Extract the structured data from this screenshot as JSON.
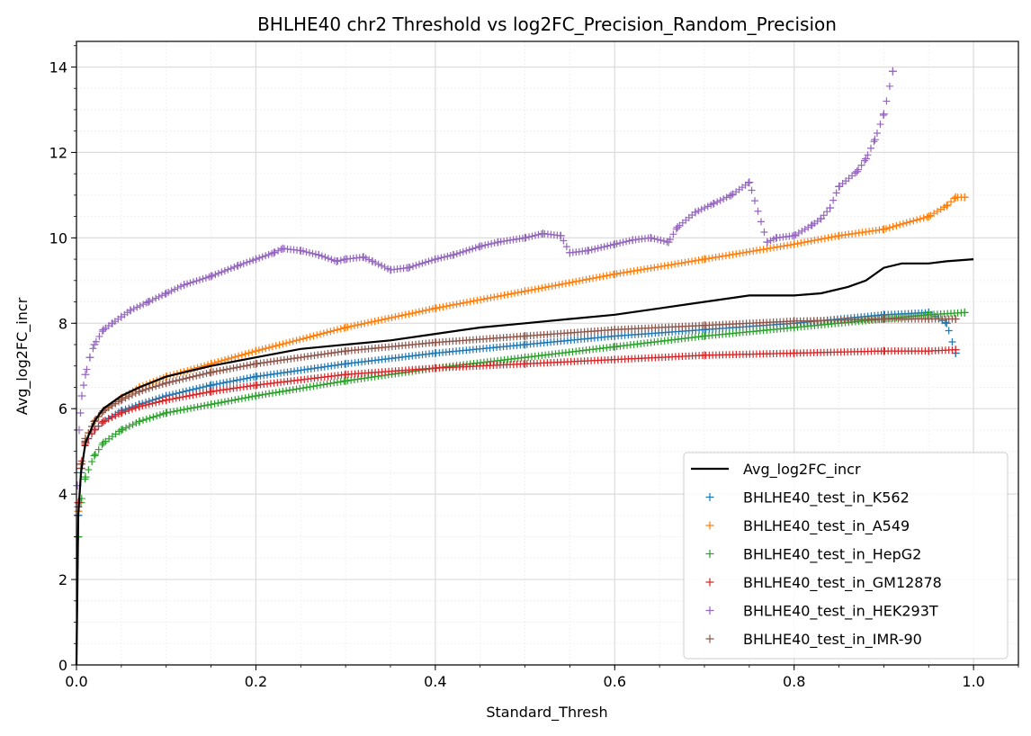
{
  "chart_data": {
    "type": "line",
    "title": "BHLHE40 chr2 Threshold vs log2FC_Precision_Random_Precision",
    "xlabel": "Standard_Thresh",
    "ylabel": "Avg_log2FC_incr",
    "xlim": [
      0.0,
      1.05
    ],
    "ylim": [
      0,
      14.6
    ],
    "xticks": [
      0.0,
      0.2,
      0.4,
      0.6,
      0.8,
      1.0
    ],
    "xtick_labels": [
      "0.0",
      "0.2",
      "0.4",
      "0.6",
      "0.8",
      "1.0"
    ],
    "yticks": [
      0,
      2,
      4,
      6,
      8,
      10,
      12,
      14
    ],
    "ytick_labels": [
      "0",
      "2",
      "4",
      "6",
      "8",
      "10",
      "12",
      "14"
    ],
    "grid": true,
    "minor_grid": true,
    "legend_position": "lower-right",
    "series": [
      {
        "name": "Avg_log2FC_incr",
        "style": "line",
        "color": "#000000",
        "x": [
          0.0,
          0.002,
          0.005,
          0.01,
          0.02,
          0.03,
          0.05,
          0.07,
          0.1,
          0.15,
          0.2,
          0.25,
          0.3,
          0.35,
          0.4,
          0.45,
          0.5,
          0.55,
          0.6,
          0.65,
          0.7,
          0.75,
          0.8,
          0.83,
          0.86,
          0.88,
          0.9,
          0.92,
          0.95,
          0.97,
          1.0
        ],
        "y": [
          0.0,
          3.5,
          4.5,
          5.2,
          5.7,
          6.0,
          6.3,
          6.5,
          6.75,
          7.0,
          7.2,
          7.4,
          7.5,
          7.6,
          7.75,
          7.9,
          8.0,
          8.1,
          8.2,
          8.35,
          8.5,
          8.65,
          8.65,
          8.7,
          8.85,
          9.0,
          9.3,
          9.4,
          9.4,
          9.45,
          9.5
        ]
      },
      {
        "name": "BHLHE40_test_in_K562",
        "style": "marker",
        "color": "#1f77b4",
        "x": [
          0.002,
          0.005,
          0.01,
          0.02,
          0.03,
          0.05,
          0.07,
          0.1,
          0.15,
          0.2,
          0.3,
          0.4,
          0.5,
          0.6,
          0.7,
          0.8,
          0.9,
          0.95,
          0.97,
          0.98
        ],
        "y": [
          3.5,
          4.5,
          5.2,
          5.5,
          5.7,
          5.95,
          6.1,
          6.3,
          6.55,
          6.75,
          7.05,
          7.3,
          7.5,
          7.7,
          7.85,
          8.0,
          8.2,
          8.25,
          8.0,
          7.3
        ]
      },
      {
        "name": "BHLHE40_test_in_A549",
        "style": "marker",
        "color": "#ff7f0e",
        "x": [
          0.002,
          0.005,
          0.01,
          0.02,
          0.03,
          0.05,
          0.07,
          0.1,
          0.15,
          0.2,
          0.3,
          0.4,
          0.5,
          0.6,
          0.7,
          0.8,
          0.85,
          0.9,
          0.95,
          0.97,
          0.98,
          0.99
        ],
        "y": [
          3.6,
          4.6,
          5.3,
          5.7,
          5.95,
          6.25,
          6.5,
          6.75,
          7.05,
          7.35,
          7.9,
          8.35,
          8.75,
          9.15,
          9.5,
          9.85,
          10.05,
          10.2,
          10.5,
          10.75,
          10.95,
          10.95
        ]
      },
      {
        "name": "BHLHE40_test_in_HepG2",
        "style": "marker",
        "color": "#2ca02c",
        "x": [
          0.002,
          0.005,
          0.01,
          0.02,
          0.03,
          0.05,
          0.07,
          0.1,
          0.15,
          0.2,
          0.3,
          0.4,
          0.5,
          0.6,
          0.7,
          0.8,
          0.9,
          0.95,
          0.99
        ],
        "y": [
          3.0,
          3.8,
          4.4,
          4.9,
          5.2,
          5.5,
          5.7,
          5.9,
          6.1,
          6.3,
          6.65,
          6.95,
          7.2,
          7.45,
          7.7,
          7.9,
          8.1,
          8.2,
          8.25
        ]
      },
      {
        "name": "BHLHE40_test_in_GM12878",
        "style": "marker",
        "color": "#d62728",
        "x": [
          0.002,
          0.005,
          0.01,
          0.02,
          0.03,
          0.05,
          0.07,
          0.1,
          0.15,
          0.2,
          0.3,
          0.4,
          0.5,
          0.6,
          0.7,
          0.8,
          0.9,
          0.95,
          0.98
        ],
        "y": [
          3.8,
          4.7,
          5.2,
          5.5,
          5.7,
          5.9,
          6.05,
          6.2,
          6.4,
          6.55,
          6.8,
          6.95,
          7.05,
          7.15,
          7.25,
          7.3,
          7.35,
          7.35,
          7.38
        ]
      },
      {
        "name": "BHLHE40_test_in_HEK293T",
        "style": "marker",
        "color": "#9467bd",
        "x": [
          0.001,
          0.003,
          0.006,
          0.01,
          0.015,
          0.02,
          0.03,
          0.04,
          0.05,
          0.06,
          0.08,
          0.1,
          0.12,
          0.15,
          0.18,
          0.2,
          0.22,
          0.23,
          0.25,
          0.27,
          0.29,
          0.3,
          0.32,
          0.33,
          0.35,
          0.37,
          0.4,
          0.42,
          0.45,
          0.47,
          0.5,
          0.52,
          0.54,
          0.55,
          0.57,
          0.6,
          0.62,
          0.64,
          0.66,
          0.67,
          0.69,
          0.71,
          0.73,
          0.75,
          0.77,
          0.78,
          0.8,
          0.82,
          0.83,
          0.84,
          0.85,
          0.87,
          0.88,
          0.89,
          0.9,
          0.91
        ],
        "y": [
          4.2,
          5.5,
          6.3,
          6.8,
          7.2,
          7.5,
          7.85,
          8.0,
          8.15,
          8.3,
          8.5,
          8.7,
          8.9,
          9.1,
          9.35,
          9.5,
          9.65,
          9.75,
          9.7,
          9.6,
          9.45,
          9.5,
          9.55,
          9.45,
          9.25,
          9.3,
          9.5,
          9.6,
          9.8,
          9.9,
          10.0,
          10.1,
          10.05,
          9.65,
          9.7,
          9.85,
          9.95,
          10.0,
          9.9,
          10.25,
          10.6,
          10.8,
          11.0,
          11.3,
          9.9,
          10.0,
          10.05,
          10.3,
          10.45,
          10.7,
          11.2,
          11.55,
          11.85,
          12.3,
          12.9,
          13.9
        ]
      },
      {
        "name": "BHLHE40_test_in_IMR-90",
        "style": "marker",
        "color": "#8c564b",
        "x": [
          0.002,
          0.005,
          0.01,
          0.02,
          0.03,
          0.05,
          0.07,
          0.1,
          0.15,
          0.2,
          0.3,
          0.4,
          0.5,
          0.6,
          0.7,
          0.8,
          0.9,
          0.95,
          0.98
        ],
        "y": [
          3.7,
          4.6,
          5.3,
          5.7,
          5.95,
          6.2,
          6.4,
          6.6,
          6.85,
          7.05,
          7.35,
          7.55,
          7.7,
          7.85,
          7.95,
          8.05,
          8.1,
          8.1,
          8.1
        ]
      }
    ]
  }
}
